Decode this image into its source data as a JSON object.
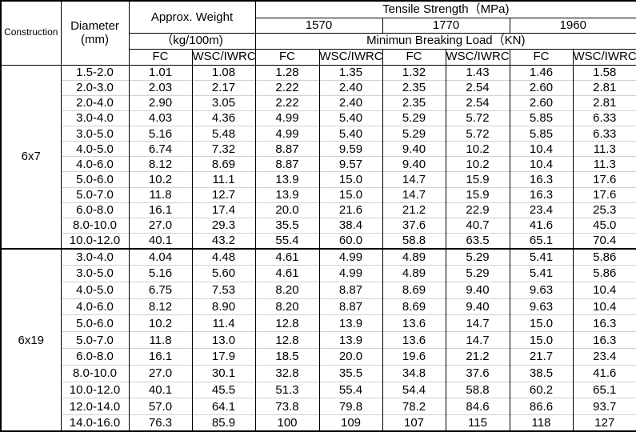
{
  "colors": {
    "grid_black": "#000000",
    "row_separator": "#ccd2d9",
    "background": "#ffffff",
    "text": "#000000"
  },
  "table": {
    "header": {
      "construction": "Construction",
      "diameter": {
        "line1": "Diameter",
        "line2": "(mm)"
      },
      "approx_weight": "Approx. Weight",
      "weight_unit": "（kg/100m)",
      "tensile_strength": "Tensile Strength（MPa)",
      "grades": [
        "1570",
        "1770",
        "1960"
      ],
      "breaking_load": "Minimun Breaking Load（KN)",
      "sub_cols": [
        "FC",
        "WSC/IWRC",
        "FC",
        "WSC/IWRC",
        "FC",
        "WSC/IWRC",
        "FC",
        "WSC/IWRC"
      ]
    },
    "sections": [
      {
        "construction": "6x7",
        "rows": [
          {
            "diameter": "1.5-2.0",
            "values": [
              "1.01",
              "1.08",
              "1.28",
              "1.35",
              "1.32",
              "1.43",
              "1.46",
              "1.58"
            ]
          },
          {
            "diameter": "2.0-3.0",
            "values": [
              "2.03",
              "2.17",
              "2.22",
              "2.40",
              "2.35",
              "2.54",
              "2.60",
              "2.81"
            ]
          },
          {
            "diameter": "2.0-4.0",
            "values": [
              "2.90",
              "3.05",
              "2.22",
              "2.40",
              "2.35",
              "2.54",
              "2.60",
              "2.81"
            ]
          },
          {
            "diameter": "3.0-4.0",
            "values": [
              "4.03",
              "4.36",
              "4.99",
              "5.40",
              "5.29",
              "5.72",
              "5.85",
              "6.33"
            ]
          },
          {
            "diameter": "3.0-5.0",
            "values": [
              "5.16",
              "5.48",
              "4.99",
              "5.40",
              "5.29",
              "5.72",
              "5.85",
              "6.33"
            ]
          },
          {
            "diameter": "4.0-5.0",
            "values": [
              "6.74",
              "7.32",
              "8.87",
              "9.59",
              "9.40",
              "10.2",
              "10.4",
              "11.3"
            ]
          },
          {
            "diameter": "4.0-6.0",
            "values": [
              "8.12",
              "8.69",
              "8.87",
              "9.57",
              "9.40",
              "10.2",
              "10.4",
              "11.3"
            ]
          },
          {
            "diameter": "5.0-6.0",
            "values": [
              "10.2",
              "11.1",
              "13.9",
              "15.0",
              "14.7",
              "15.9",
              "16.3",
              "17.6"
            ]
          },
          {
            "diameter": "5.0-7.0",
            "values": [
              "11.8",
              "12.7",
              "13.9",
              "15.0",
              "14.7",
              "15.9",
              "16.3",
              "17.6"
            ]
          },
          {
            "diameter": "6.0-8.0",
            "values": [
              "16.1",
              "17.4",
              "20.0",
              "21.6",
              "21.2",
              "22.9",
              "23.4",
              "25.3"
            ]
          },
          {
            "diameter": "8.0-10.0",
            "values": [
              "27.0",
              "29.3",
              "35.5",
              "38.4",
              "37.6",
              "40.7",
              "41.6",
              "45.0"
            ]
          },
          {
            "diameter": "10.0-12.0",
            "values": [
              "40.1",
              "43.2",
              "55.4",
              "60.0",
              "58.8",
              "63.5",
              "65.1",
              "70.4"
            ]
          }
        ]
      },
      {
        "construction": "6x19",
        "rows": [
          {
            "diameter": "3.0-4.0",
            "values": [
              "4.04",
              "4.48",
              "4.61",
              "4.99",
              "4.89",
              "5.29",
              "5.41",
              "5.86"
            ]
          },
          {
            "diameter": "3.0-5.0",
            "values": [
              "5.16",
              "5.60",
              "4.61",
              "4.99",
              "4.89",
              "5.29",
              "5.41",
              "5.86"
            ]
          },
          {
            "diameter": "4.0-5.0",
            "values": [
              "6.75",
              "7.53",
              "8.20",
              "8.87",
              "8.69",
              "9.40",
              "9.63",
              "10.4"
            ]
          },
          {
            "diameter": "4.0-6.0",
            "values": [
              "8.12",
              "8.90",
              "8.20",
              "8.87",
              "8.69",
              "9.40",
              "9.63",
              "10.4"
            ]
          },
          {
            "diameter": "5.0-6.0",
            "values": [
              "10.2",
              "11.4",
              "12.8",
              "13.9",
              "13.6",
              "14.7",
              "15.0",
              "16.3"
            ]
          },
          {
            "diameter": "5.0-7.0",
            "values": [
              "11.8",
              "13.0",
              "12.8",
              "13.9",
              "13.6",
              "14.7",
              "15.0",
              "16.3"
            ]
          },
          {
            "diameter": "6.0-8.0",
            "values": [
              "16.1",
              "17.9",
              "18.5",
              "20.0",
              "19.6",
              "21.2",
              "21.7",
              "23.4"
            ]
          },
          {
            "diameter": "8.0-10.0",
            "values": [
              "27.0",
              "30.1",
              "32.8",
              "35.5",
              "34.8",
              "37.6",
              "38.5",
              "41.6"
            ]
          },
          {
            "diameter": "10.0-12.0",
            "values": [
              "40.1",
              "45.5",
              "51.3",
              "55.4",
              "54.4",
              "58.8",
              "60.2",
              "65.1"
            ]
          },
          {
            "diameter": "12.0-14.0",
            "values": [
              "57.0",
              "64.1",
              "73.8",
              "79.8",
              "78.2",
              "84.6",
              "86.6",
              "93.7"
            ]
          },
          {
            "diameter": "14.0-16.0",
            "values": [
              "76.3",
              "85.9",
              "100",
              "109",
              "107",
              "115",
              "118",
              "127"
            ]
          }
        ]
      }
    ]
  }
}
